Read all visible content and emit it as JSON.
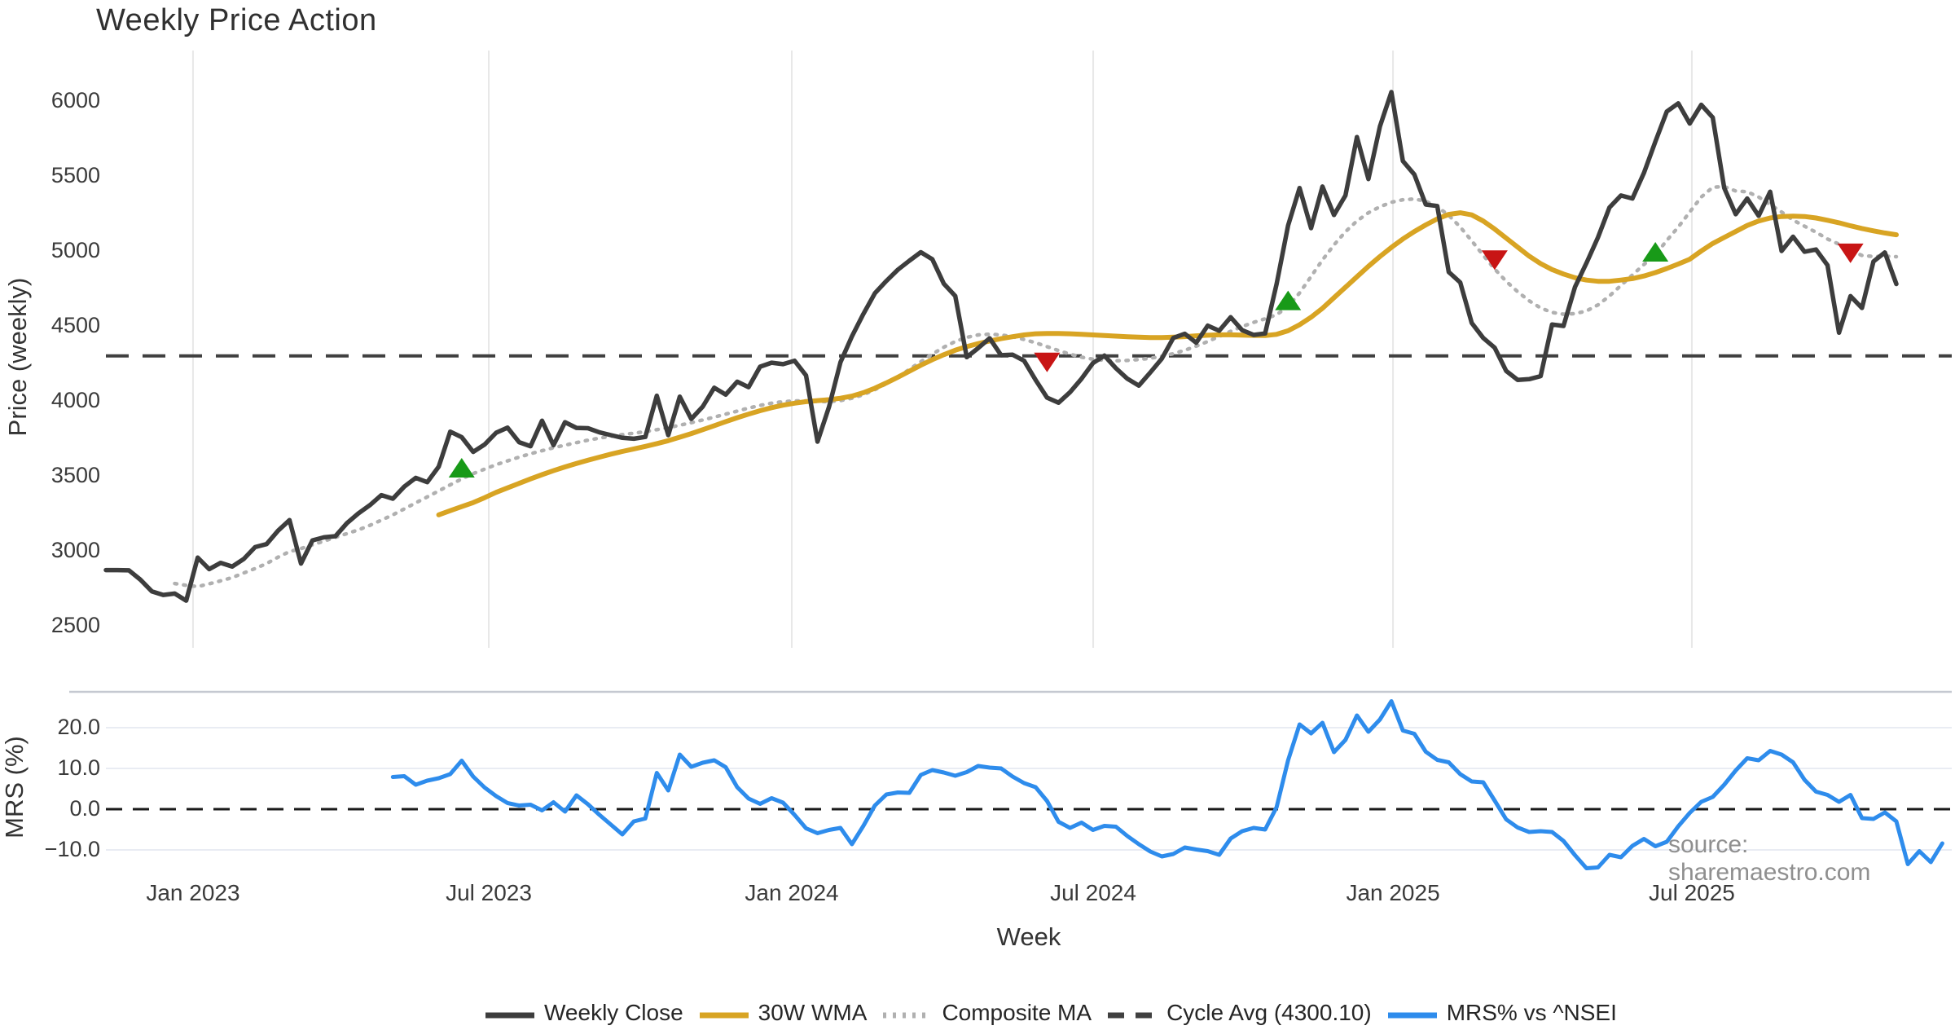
{
  "title": "Weekly Price Action",
  "source_note": "source: sharemaestro.com",
  "colors": {
    "close": "#3d3d3d",
    "wma": "#d8a423",
    "composite": "#b0b0b0",
    "cycle": "#404040",
    "mrs": "#2e8cec",
    "buy": "#189a18",
    "sell": "#c81515",
    "grid_top": "#e8e8e8",
    "grid_bottom": "#e9ecf3",
    "panel_border": "#c5c9d1",
    "zero_dash": "#1a1a1a"
  },
  "price_axis": {
    "label": "Price (weekly)",
    "ticks": [
      {
        "label": "6000",
        "value": 6000
      },
      {
        "label": "5500",
        "value": 5500
      },
      {
        "label": "5000",
        "value": 5000
      },
      {
        "label": "4500",
        "value": 4500
      },
      {
        "label": "4000",
        "value": 4000
      },
      {
        "label": "3500",
        "value": 3500
      },
      {
        "label": "3000",
        "value": 3000
      },
      {
        "label": "2500",
        "value": 2500
      }
    ]
  },
  "mrs_axis": {
    "label": "MRS (%)",
    "ticks": [
      {
        "label": "20.0",
        "value": 20
      },
      {
        "label": "10.0",
        "value": 10
      },
      {
        "label": "0.0",
        "value": 0
      },
      {
        "label": "−10.0",
        "value": -10
      }
    ]
  },
  "x_axis": {
    "label": "Week",
    "ticks": [
      {
        "label": "Jan 2023",
        "week": 7.59
      },
      {
        "label": "Jul 2023",
        "week": 33.36
      },
      {
        "label": "Jan 2024",
        "week": 59.76
      },
      {
        "label": "Jul 2024",
        "week": 86.02
      },
      {
        "label": "Jan 2025",
        "week": 112.14
      },
      {
        "label": "Jul 2025",
        "week": 138.18
      }
    ]
  },
  "legend": {
    "items": [
      {
        "label": "Weekly Close",
        "style": "solid",
        "color_key": "close"
      },
      {
        "label": "30W WMA",
        "style": "solid",
        "color_key": "wma"
      },
      {
        "label": "Composite MA",
        "style": "dotted",
        "color_key": "composite"
      },
      {
        "label": "Cycle Avg (4300.10)",
        "style": "dashed",
        "color_key": "cycle"
      },
      {
        "label": "MRS% vs ^NSEI",
        "style": "solid",
        "color_key": "mrs"
      }
    ]
  },
  "chart_data": {
    "type": "line",
    "x_unit": "week_index",
    "cycle_avg": 4300.1,
    "price_ylim": [
      2500,
      6000
    ],
    "mrs_ylim": [
      -16,
      28
    ],
    "grid": {
      "top_panel": "vertical_date_lines",
      "bottom_panel": "horizontal_lines"
    },
    "legend_position": "bottom_center",
    "series": [
      {
        "name": "Weekly Close",
        "panel": "price",
        "start": 0,
        "values": [
          2872,
          2872,
          2870,
          2808,
          2730,
          2706,
          2715,
          2668,
          2955,
          2878,
          2920,
          2895,
          2945,
          3025,
          3045,
          3135,
          3205,
          2915,
          3070,
          3090,
          3098,
          3185,
          3250,
          3305,
          3372,
          3348,
          3428,
          3487,
          3458,
          3562,
          3795,
          3758,
          3660,
          3710,
          3788,
          3822,
          3725,
          3698,
          3868,
          3705,
          3858,
          3820,
          3818,
          3790,
          3772,
          3754,
          3748,
          3760,
          4035,
          3772,
          4028,
          3880,
          3962,
          4088,
          4042,
          4128,
          4092,
          4228,
          4255,
          4245,
          4268,
          4170,
          3728,
          3960,
          4258,
          4430,
          4580,
          4718,
          4800,
          4875,
          4935,
          4992,
          4945,
          4782,
          4700,
          4292,
          4352,
          4418,
          4305,
          4308,
          4268,
          4140,
          4022,
          3988,
          4058,
          4148,
          4252,
          4302,
          4218,
          4148,
          4102,
          4190,
          4282,
          4420,
          4448,
          4388,
          4502,
          4468,
          4558,
          4472,
          4440,
          4450,
          4780,
          5170,
          5420,
          5152,
          5430,
          5240,
          5370,
          5760,
          5480,
          5830,
          6060,
          5600,
          5510,
          5310,
          5300,
          4860,
          4790,
          4520,
          4420,
          4355,
          4200,
          4140,
          4145,
          4165,
          4510,
          4500,
          4760,
          4920,
          5090,
          5290,
          5370,
          5350,
          5520,
          5730,
          5930,
          5985,
          5850,
          5975,
          5890,
          5420,
          5245,
          5350,
          5235,
          5395,
          5000,
          5095,
          4995,
          5010,
          4905,
          4455,
          4699,
          4620,
          4930,
          4990,
          4780
        ]
      },
      {
        "name": "30W WMA",
        "panel": "price",
        "start": 29,
        "values": [
          3240,
          3268,
          3295,
          3322,
          3355,
          3390,
          3420,
          3450,
          3480,
          3508,
          3535,
          3560,
          3583,
          3605,
          3625,
          3645,
          3663,
          3680,
          3697,
          3715,
          3735,
          3758,
          3782,
          3808,
          3835,
          3862,
          3888,
          3912,
          3935,
          3955,
          3972,
          3985,
          3995,
          4002,
          4008,
          4018,
          4032,
          4055,
          4085,
          4120,
          4158,
          4198,
          4238,
          4275,
          4308,
          4338,
          4362,
          4382,
          4400,
          4415,
          4428,
          4440,
          4448,
          4450,
          4450,
          4448,
          4444,
          4440,
          4436,
          4432,
          4428,
          4425,
          4423,
          4423,
          4425,
          4429,
          4434,
          4438,
          4441,
          4441,
          4439,
          4437,
          4436,
          4444,
          4468,
          4508,
          4558,
          4618,
          4688,
          4758,
          4828,
          4898,
          4963,
          5024,
          5080,
          5130,
          5174,
          5214,
          5244,
          5255,
          5241,
          5200,
          5146,
          5086,
          5026,
          4966,
          4916,
          4876,
          4846,
          4822,
          4806,
          4798,
          4798,
          4806,
          4816,
          4833,
          4856,
          4883,
          4913,
          4945,
          5000,
          5050,
          5090,
          5130,
          5170,
          5200,
          5220,
          5230,
          5232,
          5230,
          5220,
          5205,
          5188,
          5168,
          5150,
          5134,
          5120,
          5108
        ]
      },
      {
        "name": "Composite MA",
        "panel": "price",
        "start": 6,
        "values": [
          2782,
          2770,
          2762,
          2780,
          2800,
          2822,
          2852,
          2882,
          2915,
          2958,
          2995,
          3015,
          3040,
          3065,
          3090,
          3115,
          3140,
          3170,
          3205,
          3240,
          3280,
          3320,
          3360,
          3400,
          3440,
          3480,
          3515,
          3545,
          3575,
          3600,
          3625,
          3648,
          3668,
          3688,
          3705,
          3722,
          3738,
          3752,
          3764,
          3775,
          3785,
          3795,
          3808,
          3822,
          3838,
          3855,
          3873,
          3892,
          3912,
          3932,
          3952,
          3970,
          3985,
          3995,
          4000,
          4000,
          3996,
          3995,
          4002,
          4018,
          4042,
          4075,
          4115,
          4160,
          4210,
          4262,
          4312,
          4358,
          4396,
          4424,
          4440,
          4445,
          4440,
          4428,
          4410,
          4388,
          4362,
          4336,
          4312,
          4292,
          4278,
          4270,
          4268,
          4270,
          4276,
          4285,
          4298,
          4315,
          4338,
          4365,
          4396,
          4430,
          4464,
          4496,
          4524,
          4548,
          4575,
          4630,
          4720,
          4830,
          4940,
          5040,
          5128,
          5200,
          5255,
          5295,
          5325,
          5342,
          5347,
          5332,
          5295,
          5238,
          5160,
          5068,
          4972,
          4880,
          4798,
          4728,
          4668,
          4620,
          4590,
          4578,
          4582,
          4600,
          4640,
          4700,
          4770,
          4840,
          4910,
          4975,
          5070,
          5160,
          5260,
          5360,
          5425,
          5430,
          5400,
          5395,
          5360,
          5310,
          5260,
          5206,
          5165,
          5125,
          5080,
          5045,
          5005,
          4970,
          4963,
          4966,
          4962
        ]
      },
      {
        "name": "MRS% vs ^NSEI",
        "panel": "mrs",
        "start": 25,
        "values": [
          7.9,
          8.1,
          6.0,
          7.0,
          7.6,
          8.6,
          11.9,
          8.0,
          5.3,
          3.2,
          1.5,
          0.9,
          1.1,
          -0.3,
          1.7,
          -0.6,
          3.4,
          1.2,
          -1.4,
          -3.8,
          -6.2,
          -3.0,
          -2.3,
          8.9,
          4.6,
          13.4,
          10.4,
          11.4,
          12.0,
          10.3,
          5.4,
          2.6,
          1.3,
          2.7,
          1.6,
          -1.4,
          -4.7,
          -5.9,
          -5.1,
          -4.6,
          -8.6,
          -4.1,
          0.9,
          3.6,
          4.1,
          4.0,
          8.4,
          9.6,
          9.0,
          8.2,
          9.1,
          10.6,
          10.2,
          10.0,
          8.0,
          6.4,
          5.4,
          2.0,
          -3.1,
          -4.6,
          -3.3,
          -5.1,
          -4.1,
          -4.3,
          -6.6,
          -8.6,
          -10.4,
          -11.6,
          -11.0,
          -9.4,
          -9.9,
          -10.3,
          -11.2,
          -7.2,
          -5.4,
          -4.6,
          -5.0,
          0.5,
          12.0,
          20.8,
          18.6,
          21.2,
          14.0,
          17.0,
          23.0,
          19.0,
          22.0,
          26.5,
          19.3,
          18.5,
          14.1,
          12.1,
          11.5,
          8.6,
          6.8,
          6.6,
          2.1,
          -2.5,
          -4.5,
          -5.6,
          -5.4,
          -5.6,
          -7.8,
          -11.3,
          -14.5,
          -14.3,
          -11.2,
          -11.8,
          -9.0,
          -7.3,
          -9.1,
          -8.0,
          -4.2,
          -0.9,
          1.8,
          3.0,
          6.0,
          9.5,
          12.5,
          12.0,
          14.3,
          13.4,
          11.5,
          7.2,
          4.3,
          3.5,
          1.8,
          3.5,
          -2.2,
          -2.4,
          -0.8,
          -3.0,
          -13.5,
          -10.3,
          -13.0,
          -8.4
        ]
      }
    ],
    "markers": [
      {
        "week": 31,
        "price": 3549,
        "dir": "up"
      },
      {
        "week": 82,
        "price": 4262,
        "dir": "down"
      },
      {
        "week": 103,
        "price": 4665,
        "dir": "up"
      },
      {
        "week": 121,
        "price": 4944,
        "dir": "down"
      },
      {
        "week": 135,
        "price": 4989,
        "dir": "up"
      },
      {
        "week": 152,
        "price": 4990,
        "dir": "down"
      }
    ]
  }
}
